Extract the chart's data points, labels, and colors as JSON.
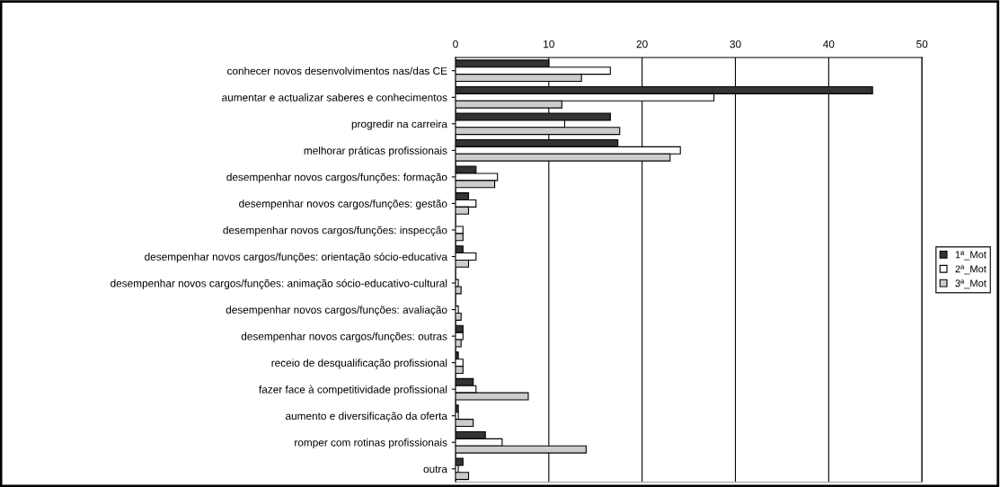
{
  "chart_data": {
    "type": "bar",
    "orientation": "horizontal",
    "categories": [
      "conhecer novos desenvolvimentos nas/das CE",
      "aumentar e actualizar saberes e conhecimentos",
      "progredir na carreira",
      "melhorar práticas profissionais",
      "desempenhar novos cargos/funções: formação",
      "desempenhar novos cargos/funções: gestão",
      "desempenhar novos cargos/funções: inspecção",
      "desempenhar novos cargos/funções: orientação sócio-educativa",
      "desempenhar novos cargos/funções: animação sócio-educativo-cultural",
      "desempenhar novos cargos/funções: avaliação",
      "desempenhar novos cargos/funções: outras",
      "receio de desqualificação profissional",
      "fazer face à competitividade profissional",
      "aumento e diversificação da oferta",
      "romper com rotinas profissionais",
      "outra"
    ],
    "series": [
      {
        "name": "1ª_Mot",
        "color": "#333333",
        "values": [
          10,
          44.7,
          16.6,
          17.4,
          2.2,
          1.4,
          0,
          0.8,
          0,
          0,
          0.8,
          0.3,
          1.9,
          0.3,
          3.2,
          0.8
        ]
      },
      {
        "name": "2ª_Mot",
        "color": "#ffffff",
        "values": [
          16.6,
          27.7,
          11.7,
          24.1,
          4.5,
          2.2,
          0.8,
          2.2,
          0.3,
          0.3,
          0.8,
          0.8,
          2.2,
          0.3,
          5.0,
          0.3
        ]
      },
      {
        "name": "3ª_Mot",
        "color": "#cccccc",
        "values": [
          13.5,
          11.4,
          17.6,
          23.0,
          4.2,
          1.4,
          0.8,
          1.4,
          0.6,
          0.6,
          0.6,
          0.8,
          7.8,
          1.9,
          14.0,
          1.4
        ]
      }
    ],
    "xlim": [
      0,
      50
    ],
    "xticks": [
      0,
      10,
      20,
      30,
      40,
      50
    ],
    "grid": "x",
    "legend": "right"
  }
}
